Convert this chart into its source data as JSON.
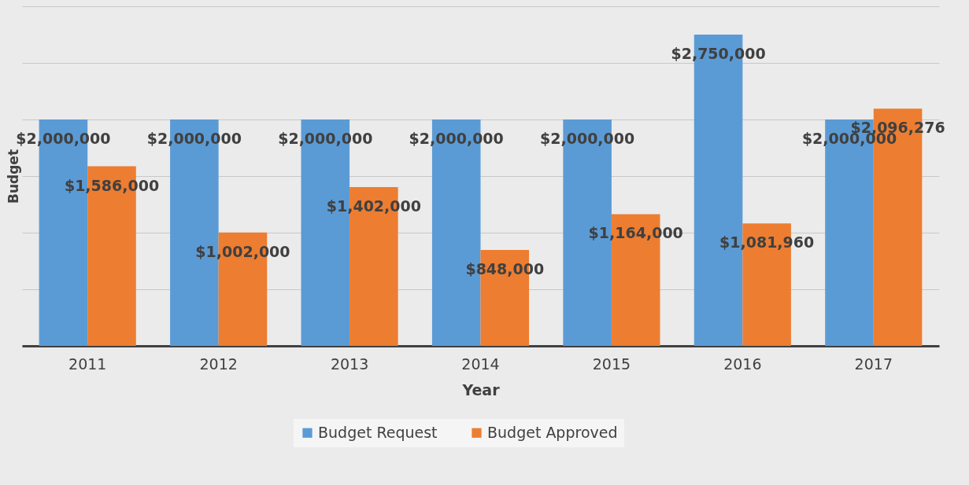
{
  "chart_data": {
    "type": "bar",
    "xlabel": "Year",
    "ylabel": "Budget",
    "categories": [
      "2011",
      "2012",
      "2013",
      "2014",
      "2015",
      "2016",
      "2017"
    ],
    "series": [
      {
        "name": "Budget Request",
        "color": "#5b9bd5",
        "values": [
          2000000,
          2000000,
          2000000,
          2000000,
          2000000,
          2750000,
          2000000
        ],
        "value_labels": [
          "$2,000,000",
          "$2,000,000",
          "$2,000,000",
          "$2,000,000",
          "$2,000,000",
          "$2,750,000",
          "$2,000,000"
        ]
      },
      {
        "name": "Budget Approved",
        "color": "#ed7d31",
        "values": [
          1586000,
          1002000,
          1402000,
          848000,
          1164000,
          1081960,
          2096276
        ],
        "value_labels": [
          "$1,586,000",
          "$1,002,000",
          "$1,402,000",
          "$848,000",
          "$1,164,000",
          "$1,081,960",
          "$2,096,276"
        ]
      }
    ],
    "ylim": [
      0,
      3000000
    ],
    "yticks": [
      0,
      500000,
      1000000,
      1500000,
      2000000,
      2500000,
      3000000
    ],
    "grid": "y",
    "legend": "bottom",
    "tick_labels": "x"
  }
}
